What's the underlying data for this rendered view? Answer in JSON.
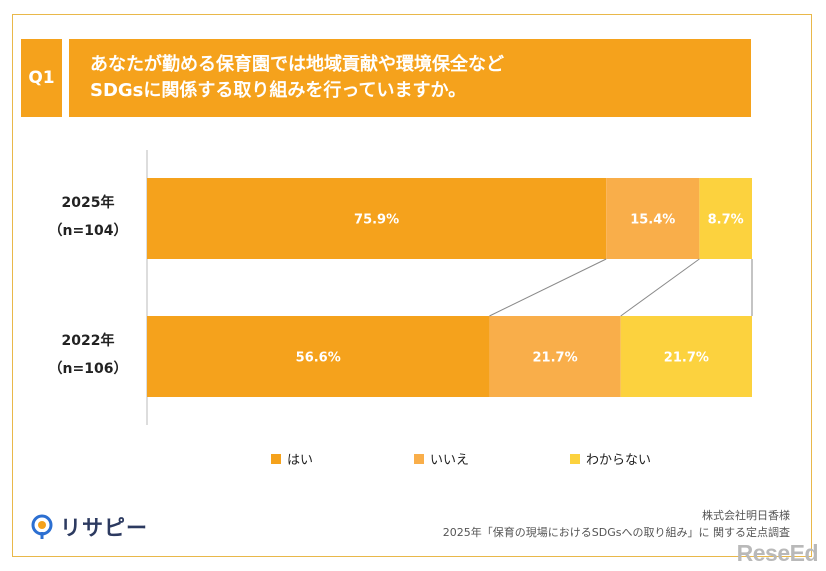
{
  "question": {
    "badge": "Q1",
    "line1": "あなたが勤める保育園では地域貢献や環境保全など",
    "line2": "SDGsに関係する取り組みを行っていますか。"
  },
  "chart_data": {
    "type": "bar",
    "orientation": "horizontal-stacked-100",
    "categories": [
      {
        "year": "2025年",
        "n": "（n=104）"
      },
      {
        "year": "2022年",
        "n": "（n=106）"
      }
    ],
    "series": [
      {
        "name": "はい",
        "values": [
          75.9,
          56.6
        ],
        "labels": [
          "75.9%",
          "56.6%"
        ]
      },
      {
        "name": "いいえ",
        "values": [
          15.4,
          21.7
        ],
        "labels": [
          "15.4%",
          "21.7%"
        ]
      },
      {
        "name": "わからない",
        "values": [
          8.7,
          21.7
        ],
        "labels": [
          "8.7%",
          "21.7%"
        ]
      }
    ],
    "xlim": [
      0,
      100
    ],
    "legend_position": "bottom",
    "colors": [
      "#f5a21c",
      "#f9ae4a",
      "#fcd23e"
    ]
  },
  "footer": {
    "company": "株式会社明日香様",
    "source": "2025年「保育の現場におけるSDGsへの取り組み」に 関する定点調査"
  },
  "brand": {
    "logo_text": "リサピー"
  },
  "watermark": "ReseEd"
}
